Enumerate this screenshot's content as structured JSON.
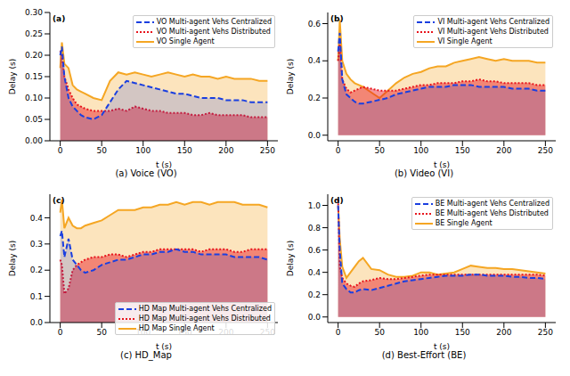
{
  "chart_data": [
    {
      "type": "area",
      "title": "(a) Voice (VO)",
      "annotation": "(a)",
      "x_label": "t (s)",
      "y_label": "Delay (s)",
      "legend": "upper right",
      "grid": false,
      "x": [
        0,
        2,
        5,
        10,
        15,
        20,
        25,
        30,
        40,
        50,
        60,
        70,
        80,
        90,
        100,
        110,
        120,
        130,
        140,
        150,
        160,
        170,
        180,
        190,
        200,
        210,
        220,
        230,
        240,
        250
      ],
      "xlim": [
        -12.5,
        262.5
      ],
      "xticks": [
        0,
        50,
        100,
        150,
        200,
        250
      ],
      "ylim": [
        0,
        0.3
      ],
      "yticks": [
        {
          "value": 0,
          "label": "0.00"
        },
        {
          "value": 0.05,
          "label": "0.05"
        },
        {
          "value": 0.1,
          "label": "0.10"
        },
        {
          "value": 0.15,
          "label": "0.15"
        },
        {
          "value": 0.2,
          "label": "0.20"
        },
        {
          "value": 0.25,
          "label": "0.25"
        },
        {
          "value": 0.3,
          "label": "0.30"
        }
      ],
      "series": [
        {
          "name": "VO Multi-agent Vehs Centralized",
          "color": "#1a3fe0",
          "line_style": "dashed",
          "values": [
            0.2,
            0.22,
            0.15,
            0.1,
            0.08,
            0.07,
            0.06,
            0.055,
            0.05,
            0.06,
            0.09,
            0.12,
            0.14,
            0.135,
            0.13,
            0.125,
            0.12,
            0.115,
            0.11,
            0.11,
            0.105,
            0.1,
            0.1,
            0.1,
            0.095,
            0.095,
            0.095,
            0.09,
            0.09,
            0.09
          ]
        },
        {
          "name": "VO Multi-agent Vehs Distributed",
          "color": "#e8141c",
          "line_style": "dotted",
          "values": [
            0.21,
            0.2,
            0.15,
            0.12,
            0.1,
            0.085,
            0.08,
            0.075,
            0.07,
            0.07,
            0.07,
            0.075,
            0.07,
            0.08,
            0.075,
            0.07,
            0.07,
            0.065,
            0.065,
            0.065,
            0.06,
            0.06,
            0.065,
            0.06,
            0.06,
            0.06,
            0.06,
            0.055,
            0.055,
            0.055
          ]
        },
        {
          "name": "VO Single Agent",
          "color": "#f5a623",
          "line_style": "solid",
          "values": [
            0.17,
            0.23,
            0.18,
            0.17,
            0.13,
            0.12,
            0.115,
            0.11,
            0.1,
            0.095,
            0.14,
            0.16,
            0.155,
            0.16,
            0.155,
            0.15,
            0.155,
            0.16,
            0.155,
            0.15,
            0.155,
            0.15,
            0.15,
            0.145,
            0.15,
            0.145,
            0.145,
            0.145,
            0.14,
            0.14
          ]
        }
      ]
    },
    {
      "type": "area",
      "title": "(b) Video (VI)",
      "annotation": "(b)",
      "x_label": "t (s)",
      "y_label": "Delay (s)",
      "legend": "upper right",
      "grid": false,
      "x": [
        0,
        2,
        5,
        10,
        15,
        20,
        25,
        30,
        40,
        50,
        60,
        70,
        80,
        90,
        100,
        110,
        120,
        130,
        140,
        150,
        160,
        170,
        180,
        190,
        200,
        210,
        220,
        230,
        240,
        250
      ],
      "xlim": [
        -12.5,
        262.5
      ],
      "xticks": [
        0,
        50,
        100,
        150,
        200,
        250
      ],
      "ylim": [
        -0.03,
        0.66
      ],
      "yticks": [
        {
          "value": 0,
          "label": "0.0"
        },
        {
          "value": 0.2,
          "label": "0.2"
        },
        {
          "value": 0.4,
          "label": "0.4"
        },
        {
          "value": 0.6,
          "label": "0.6"
        }
      ],
      "series": [
        {
          "name": "VI Multi-agent Vehs Centralized",
          "color": "#1a3fe0",
          "line_style": "dashed",
          "values": [
            0.45,
            0.55,
            0.3,
            0.22,
            0.2,
            0.18,
            0.17,
            0.17,
            0.18,
            0.19,
            0.2,
            0.22,
            0.23,
            0.24,
            0.25,
            0.26,
            0.26,
            0.26,
            0.27,
            0.27,
            0.27,
            0.26,
            0.26,
            0.26,
            0.26,
            0.25,
            0.25,
            0.25,
            0.24,
            0.24
          ]
        },
        {
          "name": "VI Multi-agent Vehs Distributed",
          "color": "#e8141c",
          "line_style": "dotted",
          "values": [
            0.4,
            0.5,
            0.3,
            0.25,
            0.23,
            0.24,
            0.25,
            0.26,
            0.25,
            0.24,
            0.24,
            0.24,
            0.25,
            0.26,
            0.27,
            0.27,
            0.28,
            0.28,
            0.28,
            0.29,
            0.29,
            0.3,
            0.29,
            0.29,
            0.28,
            0.28,
            0.28,
            0.28,
            0.27,
            0.27
          ]
        },
        {
          "name": "VI Single Agent",
          "color": "#f5a623",
          "line_style": "solid",
          "values": [
            0.4,
            0.62,
            0.4,
            0.33,
            0.3,
            0.28,
            0.27,
            0.26,
            0.23,
            0.2,
            0.24,
            0.28,
            0.31,
            0.33,
            0.34,
            0.36,
            0.37,
            0.37,
            0.39,
            0.4,
            0.41,
            0.42,
            0.41,
            0.4,
            0.41,
            0.4,
            0.4,
            0.4,
            0.39,
            0.39
          ]
        }
      ]
    },
    {
      "type": "area",
      "title": "(c) HD_Map",
      "annotation": "(c)",
      "x_label": "t (s)",
      "y_label": "Delay (s)",
      "legend": "lower right",
      "grid": false,
      "x": [
        0,
        2,
        5,
        10,
        15,
        20,
        25,
        30,
        40,
        50,
        60,
        70,
        80,
        90,
        100,
        110,
        120,
        130,
        140,
        150,
        160,
        170,
        180,
        190,
        200,
        210,
        220,
        230,
        240,
        250
      ],
      "xlim": [
        -12.5,
        262.5
      ],
      "xticks": [
        0,
        50,
        100,
        150,
        200,
        250
      ],
      "ylim": [
        0,
        0.49
      ],
      "yticks": [
        {
          "value": 0,
          "label": "0.0"
        },
        {
          "value": 0.1,
          "label": "0.1"
        },
        {
          "value": 0.2,
          "label": "0.2"
        },
        {
          "value": 0.3,
          "label": "0.3"
        },
        {
          "value": 0.4,
          "label": "0.4"
        }
      ],
      "series": [
        {
          "name": "HD Map Multi-agent Vehs Centralized",
          "color": "#1a3fe0",
          "line_style": "dashed",
          "values": [
            0.33,
            0.35,
            0.25,
            0.32,
            0.24,
            0.22,
            0.2,
            0.19,
            0.2,
            0.22,
            0.23,
            0.24,
            0.24,
            0.25,
            0.26,
            0.26,
            0.27,
            0.27,
            0.28,
            0.27,
            0.27,
            0.26,
            0.26,
            0.26,
            0.26,
            0.25,
            0.25,
            0.25,
            0.25,
            0.24
          ]
        },
        {
          "name": "HD Map Multi-agent Vehs Distributed",
          "color": "#e8141c",
          "line_style": "dotted",
          "values": [
            0.24,
            0.22,
            0.11,
            0.13,
            0.2,
            0.22,
            0.23,
            0.24,
            0.25,
            0.25,
            0.26,
            0.26,
            0.25,
            0.26,
            0.27,
            0.27,
            0.28,
            0.28,
            0.28,
            0.28,
            0.28,
            0.27,
            0.28,
            0.28,
            0.28,
            0.27,
            0.27,
            0.28,
            0.28,
            0.28
          ]
        },
        {
          "name": "HD Map Single Agent",
          "color": "#f5a623",
          "line_style": "solid",
          "values": [
            0.42,
            0.47,
            0.36,
            0.4,
            0.37,
            0.36,
            0.36,
            0.37,
            0.38,
            0.39,
            0.41,
            0.43,
            0.43,
            0.43,
            0.44,
            0.44,
            0.45,
            0.45,
            0.46,
            0.45,
            0.46,
            0.46,
            0.45,
            0.46,
            0.46,
            0.46,
            0.45,
            0.45,
            0.45,
            0.44
          ]
        }
      ]
    },
    {
      "type": "area",
      "title": "(d) Best-Effort (BE)",
      "annotation": "(d)",
      "x_label": "t (s)",
      "y_label": "Delay (s)",
      "legend": "upper right",
      "grid": false,
      "x": [
        0,
        2,
        5,
        10,
        15,
        20,
        25,
        30,
        40,
        50,
        60,
        70,
        80,
        90,
        100,
        110,
        120,
        130,
        140,
        150,
        160,
        170,
        180,
        190,
        200,
        210,
        220,
        230,
        240,
        250
      ],
      "xlim": [
        -12.5,
        262.5
      ],
      "xticks": [
        0,
        50,
        100,
        150,
        200,
        250
      ],
      "ylim": [
        -0.05,
        1.1
      ],
      "yticks": [
        {
          "value": 0,
          "label": "0.0"
        },
        {
          "value": 0.2,
          "label": "0.2"
        },
        {
          "value": 0.4,
          "label": "0.4"
        },
        {
          "value": 0.6,
          "label": "0.6"
        },
        {
          "value": 0.8,
          "label": "0.8"
        },
        {
          "value": 1,
          "label": "1.0"
        }
      ],
      "series": [
        {
          "name": "BE Multi-agent Vehs Centralized",
          "color": "#1a3fe0",
          "line_style": "dashed",
          "values": [
            1.0,
            0.6,
            0.3,
            0.25,
            0.22,
            0.22,
            0.24,
            0.25,
            0.24,
            0.26,
            0.28,
            0.3,
            0.32,
            0.33,
            0.34,
            0.35,
            0.36,
            0.37,
            0.37,
            0.37,
            0.38,
            0.38,
            0.37,
            0.37,
            0.37,
            0.36,
            0.36,
            0.35,
            0.35,
            0.34
          ]
        },
        {
          "name": "BE Multi-agent Vehs Distributed",
          "color": "#e8141c",
          "line_style": "dotted",
          "values": [
            1.05,
            0.45,
            0.35,
            0.3,
            0.28,
            0.27,
            0.3,
            0.32,
            0.33,
            0.35,
            0.34,
            0.34,
            0.35,
            0.36,
            0.37,
            0.38,
            0.38,
            0.38,
            0.38,
            0.38,
            0.38,
            0.38,
            0.38,
            0.38,
            0.38,
            0.38,
            0.38,
            0.38,
            0.38,
            0.37
          ]
        },
        {
          "name": "BE Single Agent",
          "color": "#f5a623",
          "line_style": "solid",
          "values": [
            1.0,
            0.7,
            0.45,
            0.35,
            0.4,
            0.45,
            0.5,
            0.53,
            0.43,
            0.42,
            0.38,
            0.36,
            0.36,
            0.37,
            0.4,
            0.4,
            0.38,
            0.39,
            0.4,
            0.43,
            0.46,
            0.45,
            0.44,
            0.44,
            0.43,
            0.43,
            0.42,
            0.41,
            0.4,
            0.39
          ]
        }
      ]
    }
  ]
}
